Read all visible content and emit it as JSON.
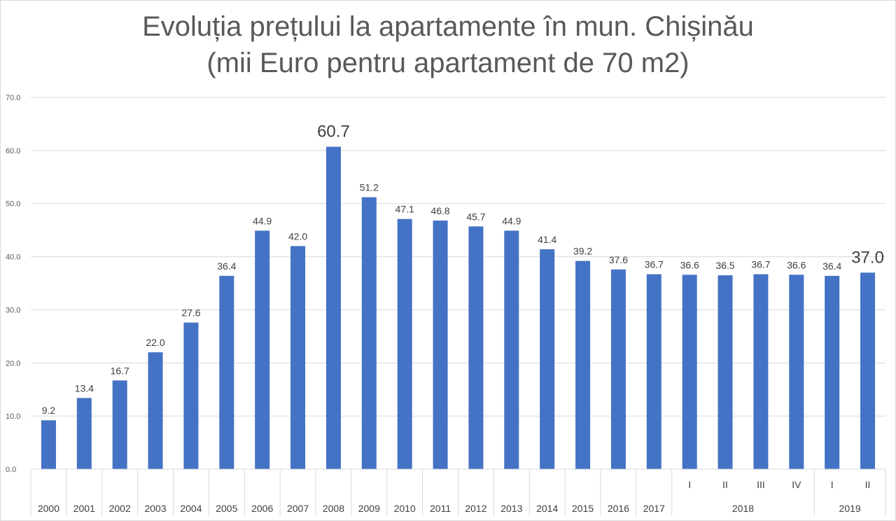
{
  "chart_data": {
    "type": "bar",
    "title": [
      "Evoluția prețului la apartamente în mun. Chișinău",
      "(mii Euro pentru apartament de 70 m2)"
    ],
    "categories": [
      "2000",
      "2001",
      "2002",
      "2003",
      "2004",
      "2005",
      "2006",
      "2007",
      "2008",
      "2009",
      "2010",
      "2011",
      "2012",
      "2013",
      "2014",
      "2015",
      "2016",
      "2017",
      "I",
      "II",
      "III",
      "IV",
      "I",
      "II"
    ],
    "category_groups": [
      {
        "label": "2018",
        "members": [
          "I",
          "II",
          "III",
          "IV"
        ]
      },
      {
        "label": "2019",
        "members": [
          "I",
          "II"
        ]
      }
    ],
    "values": [
      9.2,
      13.4,
      16.7,
      22.0,
      27.6,
      36.4,
      44.9,
      42.0,
      60.7,
      51.2,
      47.1,
      46.8,
      45.7,
      44.9,
      41.4,
      39.2,
      37.6,
      36.7,
      36.6,
      36.5,
      36.7,
      36.6,
      36.4,
      37.0
    ],
    "value_labels": [
      "9.2",
      "13.4",
      "16.7",
      "22.0",
      "27.6",
      "36.4",
      "44.9",
      "42.0",
      "60.7",
      "51.2",
      "47.1",
      "46.8",
      "45.7",
      "44.9",
      "41.4",
      "39.2",
      "37.6",
      "36.7",
      "36.6",
      "36.5",
      "36.7",
      "36.6",
      "36.4",
      "37.0"
    ],
    "emphasized_labels": [
      8,
      23
    ],
    "ylim": [
      0,
      70
    ],
    "yticks": [
      "0.0",
      "10.0",
      "20.0",
      "30.0",
      "40.0",
      "50.0",
      "60.0",
      "70.0"
    ],
    "grid": true,
    "legend": "none",
    "bar_color": "#4472c4",
    "grid_color": "#d9d9d9",
    "text_color": "#595959"
  }
}
